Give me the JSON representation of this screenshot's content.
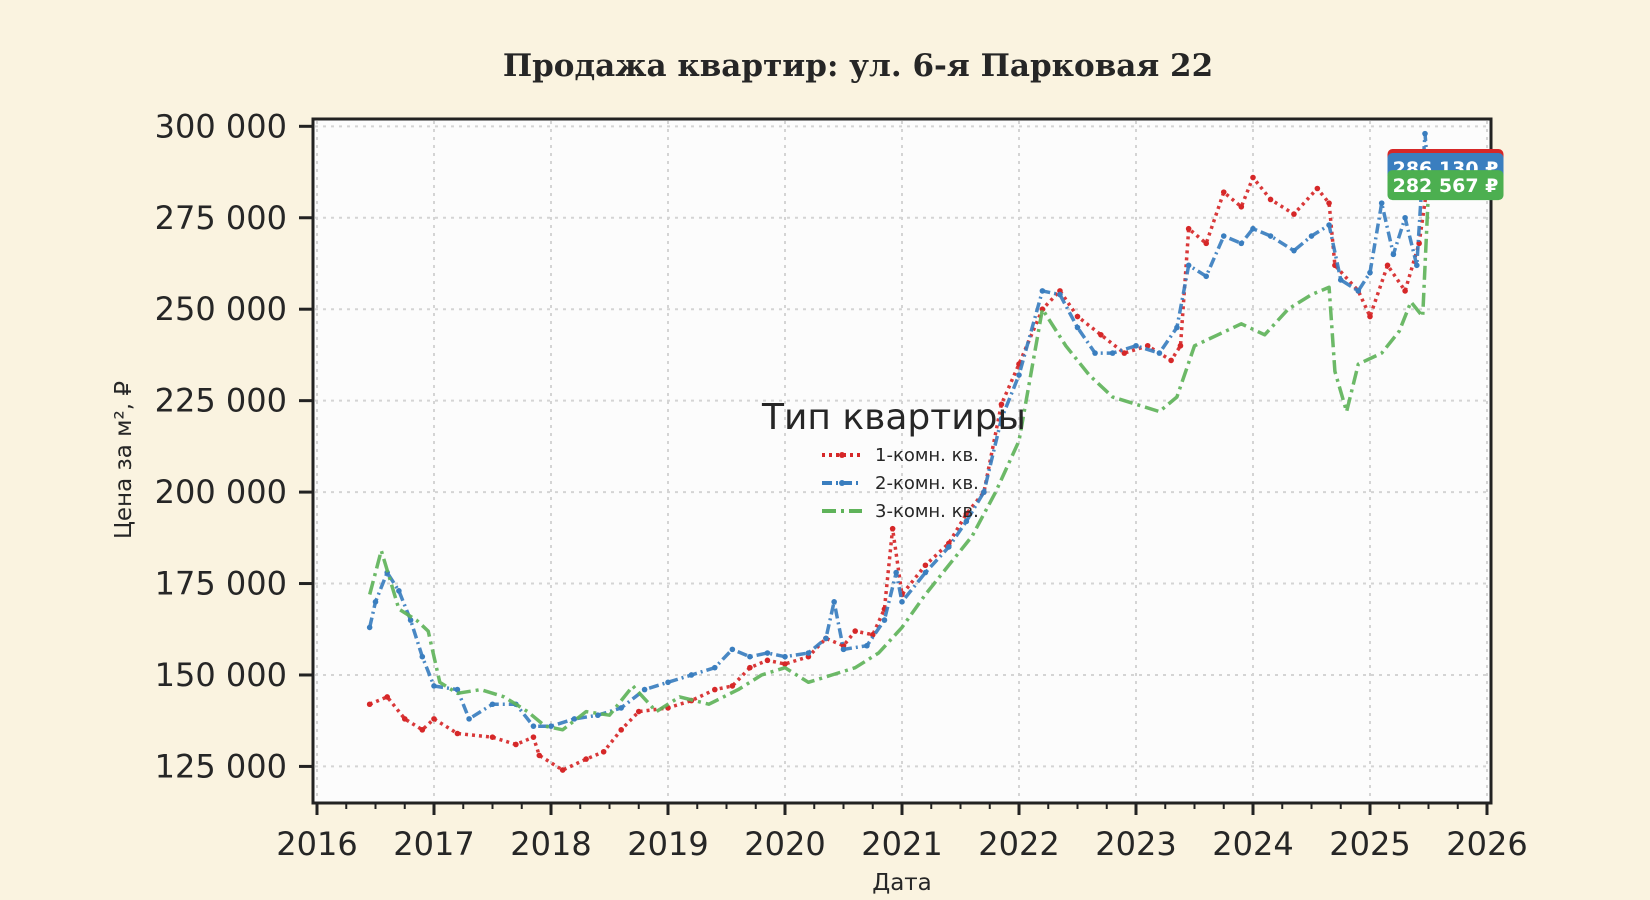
{
  "chart_data": {
    "type": "line",
    "title": "Продажа квартир: ул. 6-я Парковая 22",
    "xlabel": "Дата",
    "ylabel": "Цена за м², ₽",
    "xlim": [
      2016,
      2026
    ],
    "ylim": [
      115000,
      302000
    ],
    "x_ticks": [
      "2016",
      "2017",
      "2018",
      "2019",
      "2020",
      "2021",
      "2022",
      "2023",
      "2024",
      "2025",
      "2026"
    ],
    "y_ticks": [
      "125 000",
      "150 000",
      "175 000",
      "200 000",
      "225 000",
      "250 000",
      "275 000",
      "300 000"
    ],
    "grid": true,
    "legend": {
      "title": "Тип квартиры",
      "position": "center"
    },
    "series": [
      {
        "name": "1-комн. кв.",
        "color": "#d62728",
        "style": "dotted-markers",
        "points": [
          [
            2016.45,
            142000
          ],
          [
            2016.6,
            144000
          ],
          [
            2016.75,
            138000
          ],
          [
            2016.9,
            135000
          ],
          [
            2017.0,
            138000
          ],
          [
            2017.2,
            134000
          ],
          [
            2017.5,
            133000
          ],
          [
            2017.7,
            131000
          ],
          [
            2017.85,
            133000
          ],
          [
            2017.9,
            128000
          ],
          [
            2018.1,
            124000
          ],
          [
            2018.3,
            127000
          ],
          [
            2018.45,
            129000
          ],
          [
            2018.6,
            135000
          ],
          [
            2018.75,
            140000
          ],
          [
            2019.0,
            141000
          ],
          [
            2019.2,
            143000
          ],
          [
            2019.4,
            146000
          ],
          [
            2019.55,
            147000
          ],
          [
            2019.7,
            152000
          ],
          [
            2019.85,
            154000
          ],
          [
            2020.0,
            153000
          ],
          [
            2020.2,
            155000
          ],
          [
            2020.35,
            160000
          ],
          [
            2020.5,
            158000
          ],
          [
            2020.6,
            162000
          ],
          [
            2020.75,
            161000
          ],
          [
            2020.85,
            168000
          ],
          [
            2020.92,
            190000
          ],
          [
            2021.0,
            172000
          ],
          [
            2021.2,
            180000
          ],
          [
            2021.4,
            186000
          ],
          [
            2021.55,
            194000
          ],
          [
            2021.7,
            200000
          ],
          [
            2021.85,
            224000
          ],
          [
            2022.0,
            235000
          ],
          [
            2022.2,
            250000
          ],
          [
            2022.35,
            255000
          ],
          [
            2022.5,
            248000
          ],
          [
            2022.7,
            243000
          ],
          [
            2022.9,
            238000
          ],
          [
            2023.1,
            240000
          ],
          [
            2023.3,
            236000
          ],
          [
            2023.38,
            240000
          ],
          [
            2023.45,
            272000
          ],
          [
            2023.6,
            268000
          ],
          [
            2023.75,
            282000
          ],
          [
            2023.9,
            278000
          ],
          [
            2024.0,
            286000
          ],
          [
            2024.15,
            280000
          ],
          [
            2024.35,
            276000
          ],
          [
            2024.55,
            283000
          ],
          [
            2024.65,
            279000
          ],
          [
            2024.7,
            262000
          ],
          [
            2024.9,
            255000
          ],
          [
            2025.0,
            248000
          ],
          [
            2025.15,
            262000
          ],
          [
            2025.3,
            255000
          ],
          [
            2025.42,
            268000
          ],
          [
            2025.5,
            286130
          ]
        ]
      },
      {
        "name": "2-комн. кв.",
        "color": "#3a7ebf",
        "style": "dashdot-markers",
        "points": [
          [
            2016.45,
            163000
          ],
          [
            2016.5,
            170000
          ],
          [
            2016.6,
            178000
          ],
          [
            2016.7,
            173000
          ],
          [
            2016.8,
            165000
          ],
          [
            2016.9,
            155000
          ],
          [
            2017.0,
            147000
          ],
          [
            2017.2,
            146000
          ],
          [
            2017.3,
            138000
          ],
          [
            2017.5,
            142000
          ],
          [
            2017.7,
            142000
          ],
          [
            2017.85,
            136000
          ],
          [
            2018.0,
            136000
          ],
          [
            2018.2,
            138000
          ],
          [
            2018.4,
            139000
          ],
          [
            2018.6,
            141000
          ],
          [
            2018.8,
            146000
          ],
          [
            2019.0,
            148000
          ],
          [
            2019.2,
            150000
          ],
          [
            2019.4,
            152000
          ],
          [
            2019.55,
            157000
          ],
          [
            2019.7,
            155000
          ],
          [
            2019.85,
            156000
          ],
          [
            2020.0,
            155000
          ],
          [
            2020.2,
            156000
          ],
          [
            2020.35,
            160000
          ],
          [
            2020.42,
            170000
          ],
          [
            2020.5,
            157000
          ],
          [
            2020.7,
            158000
          ],
          [
            2020.85,
            165000
          ],
          [
            2020.95,
            178000
          ],
          [
            2021.0,
            170000
          ],
          [
            2021.2,
            178000
          ],
          [
            2021.4,
            185000
          ],
          [
            2021.55,
            192000
          ],
          [
            2021.7,
            200000
          ],
          [
            2021.85,
            220000
          ],
          [
            2022.0,
            232000
          ],
          [
            2022.2,
            255000
          ],
          [
            2022.35,
            254000
          ],
          [
            2022.5,
            245000
          ],
          [
            2022.65,
            238000
          ],
          [
            2022.8,
            238000
          ],
          [
            2023.0,
            240000
          ],
          [
            2023.2,
            238000
          ],
          [
            2023.35,
            245000
          ],
          [
            2023.45,
            262000
          ],
          [
            2023.6,
            259000
          ],
          [
            2023.75,
            270000
          ],
          [
            2023.9,
            268000
          ],
          [
            2024.0,
            272000
          ],
          [
            2024.15,
            270000
          ],
          [
            2024.35,
            266000
          ],
          [
            2024.5,
            270000
          ],
          [
            2024.65,
            273000
          ],
          [
            2024.75,
            258000
          ],
          [
            2024.9,
            255000
          ],
          [
            2025.0,
            260000
          ],
          [
            2025.1,
            279000
          ],
          [
            2025.2,
            265000
          ],
          [
            2025.3,
            275000
          ],
          [
            2025.4,
            262000
          ],
          [
            2025.47,
            298000
          ],
          [
            2025.5,
            286130
          ]
        ]
      },
      {
        "name": "3-комн. кв.",
        "color": "#5fb35a",
        "style": "dashdot",
        "points": [
          [
            2016.45,
            172000
          ],
          [
            2016.55,
            184000
          ],
          [
            2016.7,
            168000
          ],
          [
            2016.85,
            165000
          ],
          [
            2016.95,
            162000
          ],
          [
            2017.05,
            148000
          ],
          [
            2017.2,
            145000
          ],
          [
            2017.4,
            146000
          ],
          [
            2017.6,
            144000
          ],
          [
            2017.8,
            140000
          ],
          [
            2017.95,
            136000
          ],
          [
            2018.1,
            135000
          ],
          [
            2018.3,
            140000
          ],
          [
            2018.5,
            139000
          ],
          [
            2018.7,
            147000
          ],
          [
            2018.9,
            140000
          ],
          [
            2019.1,
            144000
          ],
          [
            2019.35,
            142000
          ],
          [
            2019.6,
            146000
          ],
          [
            2019.8,
            150000
          ],
          [
            2020.0,
            152000
          ],
          [
            2020.2,
            148000
          ],
          [
            2020.4,
            150000
          ],
          [
            2020.6,
            152000
          ],
          [
            2020.8,
            156000
          ],
          [
            2021.0,
            163000
          ],
          [
            2021.2,
            172000
          ],
          [
            2021.4,
            180000
          ],
          [
            2021.6,
            188000
          ],
          [
            2021.8,
            200000
          ],
          [
            2022.0,
            214000
          ],
          [
            2022.2,
            250000
          ],
          [
            2022.4,
            240000
          ],
          [
            2022.6,
            232000
          ],
          [
            2022.8,
            226000
          ],
          [
            2023.0,
            224000
          ],
          [
            2023.2,
            222000
          ],
          [
            2023.35,
            226000
          ],
          [
            2023.5,
            240000
          ],
          [
            2023.7,
            243000
          ],
          [
            2023.9,
            246000
          ],
          [
            2024.1,
            243000
          ],
          [
            2024.3,
            250000
          ],
          [
            2024.5,
            254000
          ],
          [
            2024.65,
            256000
          ],
          [
            2024.7,
            233000
          ],
          [
            2024.8,
            222000
          ],
          [
            2024.9,
            235000
          ],
          [
            2025.1,
            238000
          ],
          [
            2025.25,
            244000
          ],
          [
            2025.35,
            252000
          ],
          [
            2025.45,
            248000
          ],
          [
            2025.5,
            282567
          ]
        ]
      }
    ],
    "end_labels": [
      {
        "text": "286 130 ₽",
        "color": "#d62728"
      },
      {
        "text": "286 130 ₽",
        "color": "#3a7ebf"
      },
      {
        "text": "282 567 ₽",
        "color": "#4caf50"
      }
    ]
  }
}
